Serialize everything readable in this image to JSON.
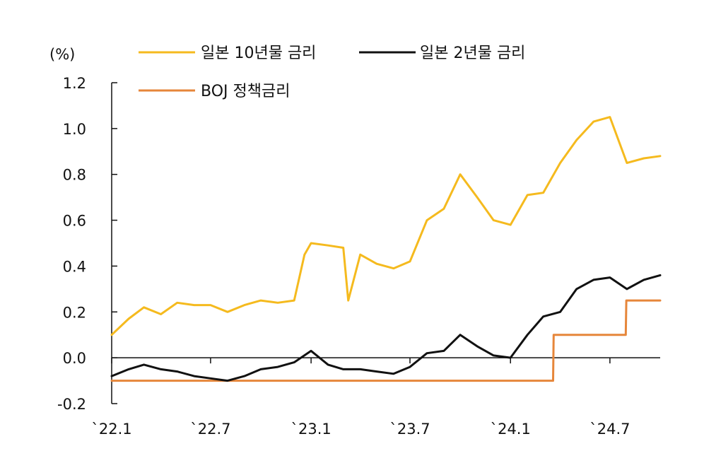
{
  "chart_data": {
    "type": "line",
    "unit_label": "(%)",
    "ylim": [
      -0.2,
      1.2
    ],
    "y_ticks": [
      "1.2",
      "1.0",
      "0.8",
      "0.6",
      "0.4",
      "0.2",
      "0.0",
      "-0.2"
    ],
    "x_ticks": [
      "`22.1",
      "`22.7",
      "`23.1",
      "`23.7",
      "`24.1",
      "`24.7"
    ],
    "x_start": "2022-01",
    "x_end": "2024-10",
    "legend": [
      "일본 10년물 금리",
      "일본 2년물 금리",
      "BOJ 정책금리"
    ],
    "colors": {
      "jgb10y": "#F5BA1E",
      "jgb2y": "#111111",
      "boj": "#E6863A"
    },
    "series": [
      {
        "name": "일본 10년물 금리",
        "x": [
          "2022-01",
          "2022-02",
          "2022-03",
          "2022-04",
          "2022-05",
          "2022-06",
          "2022-07",
          "2022-08",
          "2022-09",
          "2022-10",
          "2022-11",
          "2022-12",
          "2022-12-20",
          "2023-01",
          "2023-02",
          "2023-03",
          "2023-03-10",
          "2023-04",
          "2023-05",
          "2023-06",
          "2023-07",
          "2023-08",
          "2023-09",
          "2023-10",
          "2023-11",
          "2023-12",
          "2024-01",
          "2024-02",
          "2024-03",
          "2024-04",
          "2024-05",
          "2024-06",
          "2024-07",
          "2024-08",
          "2024-09",
          "2024-10"
        ],
        "y": [
          0.1,
          0.17,
          0.22,
          0.19,
          0.24,
          0.23,
          0.23,
          0.2,
          0.23,
          0.25,
          0.24,
          0.25,
          0.45,
          0.5,
          0.49,
          0.48,
          0.25,
          0.45,
          0.41,
          0.39,
          0.42,
          0.6,
          0.65,
          0.8,
          0.7,
          0.6,
          0.58,
          0.71,
          0.72,
          0.85,
          0.95,
          1.03,
          1.05,
          0.85,
          0.87,
          0.88
        ]
      },
      {
        "name": "일본 2년물 금리",
        "x": [
          "2022-01",
          "2022-02",
          "2022-03",
          "2022-04",
          "2022-05",
          "2022-06",
          "2022-07",
          "2022-08",
          "2022-09",
          "2022-10",
          "2022-11",
          "2022-12",
          "2023-01",
          "2023-02",
          "2023-03",
          "2023-04",
          "2023-05",
          "2023-06",
          "2023-07",
          "2023-08",
          "2023-09",
          "2023-10",
          "2023-11",
          "2023-12",
          "2024-01",
          "2024-02",
          "2024-03",
          "2024-04",
          "2024-05",
          "2024-06",
          "2024-07",
          "2024-08",
          "2024-09",
          "2024-10"
        ],
        "y": [
          -0.08,
          -0.05,
          -0.03,
          -0.05,
          -0.06,
          -0.08,
          -0.09,
          -0.1,
          -0.08,
          -0.05,
          -0.04,
          -0.02,
          0.03,
          -0.03,
          -0.05,
          -0.05,
          -0.06,
          -0.07,
          -0.04,
          0.02,
          0.03,
          0.1,
          0.05,
          0.01,
          0.0,
          0.1,
          0.18,
          0.2,
          0.3,
          0.34,
          0.35,
          0.3,
          0.34,
          0.36
        ]
      },
      {
        "name": "BOJ 정책금리",
        "x": [
          "2022-01",
          "2024-03-19",
          "2024-03-20",
          "2024-07-30",
          "2024-07-31",
          "2024-10"
        ],
        "y": [
          -0.1,
          -0.1,
          0.1,
          0.1,
          0.25,
          0.25
        ]
      }
    ]
  }
}
